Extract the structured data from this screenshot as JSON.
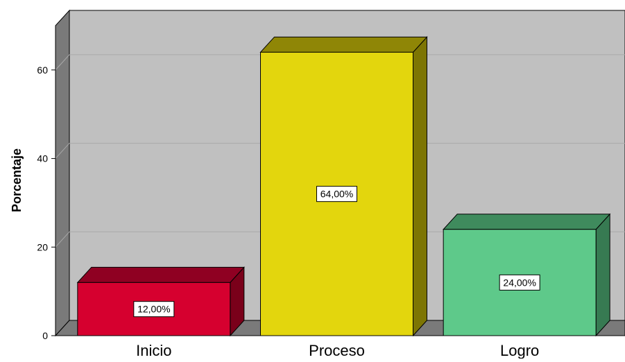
{
  "chart_data": {
    "type": "bar",
    "title": "",
    "xlabel": "",
    "ylabel": "Porcentaje",
    "categories": [
      "Inicio",
      "Proceso",
      "Logro"
    ],
    "values": [
      12,
      64,
      24
    ],
    "data_labels": [
      "12,00%",
      "64,00%",
      "24,00%"
    ],
    "ylim": [
      0,
      70
    ],
    "yticks": [
      0,
      20,
      40,
      60
    ],
    "ytick_labels": [
      "0",
      "20",
      "40",
      "60"
    ],
    "grid": true,
    "style": "3d",
    "colors": {
      "bars": [
        "#d6002f",
        "#e3d60d",
        "#5ec98a"
      ],
      "bar_sides": [
        "#7a001a",
        "#7d7503",
        "#377a52"
      ],
      "bar_tops": [
        "#8f0022",
        "#8f8606",
        "#3f8b5d"
      ],
      "plot_background": "#c0c0c0",
      "left_wall": "#7a7a7a",
      "floor": "#7a7a7a",
      "gridline": "#a9a9a9"
    }
  }
}
